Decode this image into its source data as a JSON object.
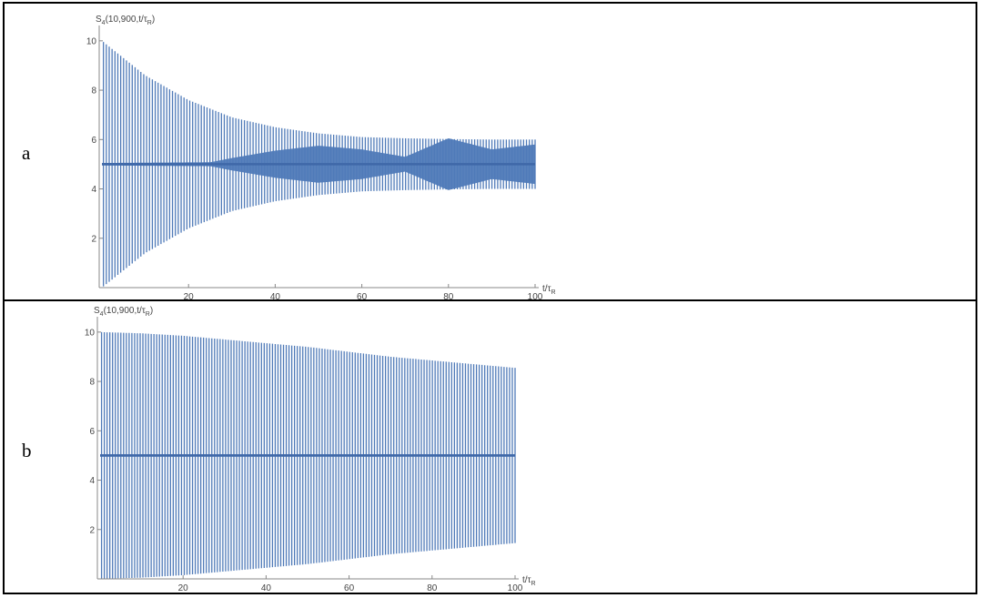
{
  "panels": [
    {
      "label": "a"
    },
    {
      "label": "b"
    }
  ],
  "chart_data": [
    {
      "type": "line",
      "description_style": "dense oscillation",
      "ylabel": "S4(10,900,t/τR)",
      "xlabel": "t/τR",
      "xlim": [
        0,
        100
      ],
      "ylim": [
        0,
        10.4
      ],
      "xticks": [
        20,
        40,
        60,
        80,
        100
      ],
      "yticks": [
        2,
        4,
        6,
        8,
        10
      ],
      "center": 5,
      "series": [
        {
          "upper_envelope": {
            "x": [
              0,
              10,
              20,
              30,
              40,
              50,
              60,
              70,
              80,
              90,
              100
            ],
            "y": [
              10,
              8.6,
              7.6,
              6.9,
              6.5,
              6.25,
              6.1,
              6.05,
              6.02,
              6.0,
              6.0
            ]
          },
          "lower_envelope": {
            "x": [
              0,
              10,
              20,
              30,
              40,
              50,
              60,
              70,
              80,
              90,
              100
            ],
            "y": [
              0,
              1.4,
              2.4,
              3.1,
              3.5,
              3.75,
              3.9,
              3.95,
              3.98,
              4.0,
              4.0
            ]
          },
          "inner_band": {
            "x": [
              0,
              25,
              30,
              40,
              50,
              60,
              70,
              80,
              90,
              100
            ],
            "half_width": [
              0.05,
              0.08,
              0.25,
              0.55,
              0.75,
              0.6,
              0.3,
              1.05,
              0.6,
              0.8
            ]
          }
        }
      ]
    },
    {
      "type": "line",
      "ylabel": "S4(10,900,t/τR)",
      "xlabel": "t/τR",
      "xlim": [
        0,
        100
      ],
      "ylim": [
        0,
        10.4
      ],
      "xticks": [
        20,
        40,
        60,
        80,
        100
      ],
      "yticks": [
        2,
        4,
        6,
        8,
        10
      ],
      "center": 5,
      "series": [
        {
          "upper_envelope": {
            "x": [
              0,
              10,
              20,
              30,
              40,
              50,
              60,
              70,
              80,
              90,
              100
            ],
            "y": [
              10,
              9.95,
              9.85,
              9.7,
              9.55,
              9.4,
              9.2,
              9.0,
              8.85,
              8.7,
              8.55
            ]
          },
          "lower_envelope": {
            "x": [
              0,
              10,
              20,
              30,
              40,
              50,
              60,
              70,
              80,
              90,
              100
            ],
            "y": [
              0,
              0.05,
              0.15,
              0.3,
              0.45,
              0.6,
              0.8,
              1.0,
              1.15,
              1.3,
              1.45
            ]
          },
          "inner_band": {
            "x": [
              0,
              100
            ],
            "half_width": [
              0.05,
              0.05
            ]
          }
        }
      ]
    }
  ]
}
